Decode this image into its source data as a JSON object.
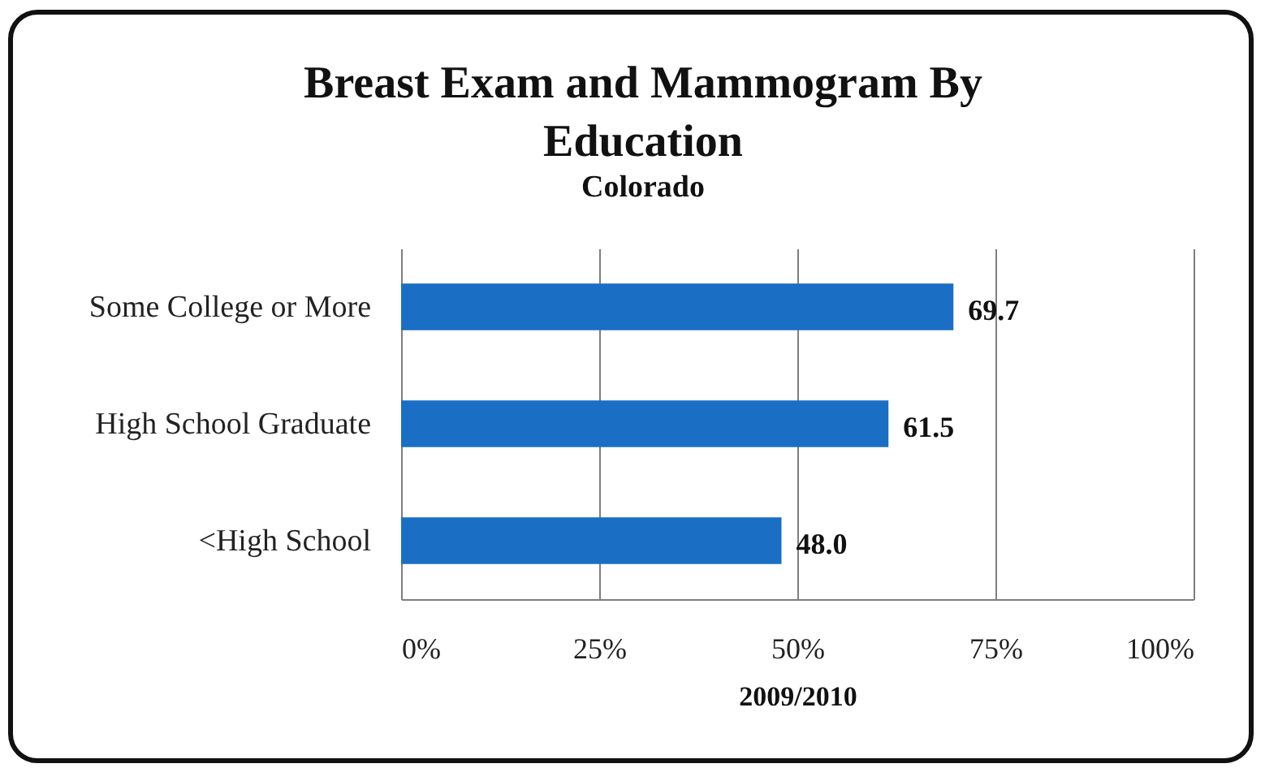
{
  "chart_data": {
    "type": "bar",
    "orientation": "horizontal",
    "title": "Breast Exam and Mammogram By Education",
    "subtitle": "Colorado",
    "xlabel": "2009/2010",
    "categories": [
      "Some College or More",
      "High School Graduate",
      "<High School"
    ],
    "values": [
      69.7,
      61.5,
      48.0
    ],
    "value_labels": [
      "69.7",
      "61.5",
      "48.0"
    ],
    "color": "#1a6ec4",
    "xlim": [
      0,
      100
    ],
    "xticks": [
      {
        "value": 0,
        "label": "0%"
      },
      {
        "value": 25,
        "label": "25%"
      },
      {
        "value": 50,
        "label": "50%"
      },
      {
        "value": 75,
        "label": "75%"
      },
      {
        "value": 100,
        "label": "100%"
      }
    ],
    "grid": "x"
  }
}
